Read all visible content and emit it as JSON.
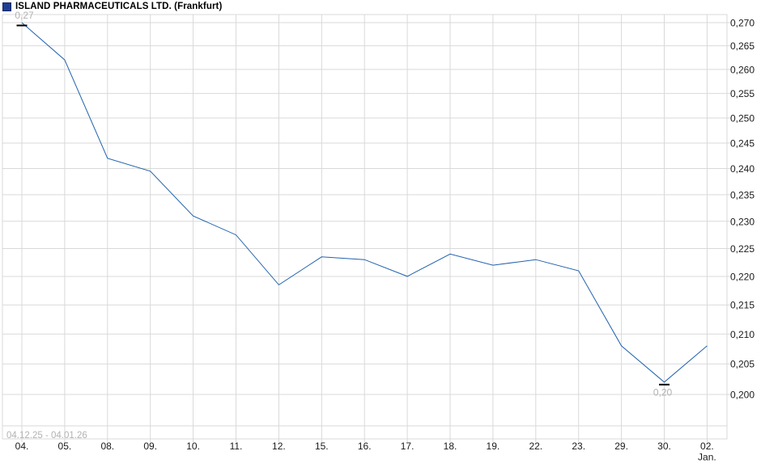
{
  "header": {
    "title": "ISLAND PHARMACEUTICALS LTD. (Frankfurt)"
  },
  "colors": {
    "line": "#2161ae",
    "grid": "#d9d9d9",
    "axis_text": "#1a1a1a",
    "muted_text": "#b2b2b2",
    "marker": "#000000",
    "legend_square": "#1b3f94",
    "background": "#ffffff"
  },
  "chart_data": {
    "type": "line",
    "title": "ISLAND PHARMACEUTICALS LTD. (Frankfurt)",
    "exchange": "Frankfurt",
    "date_range_label": "04.12.25 - 04.01.26",
    "y_scale": "log",
    "grid": true,
    "legend_position": "top-left",
    "x_tick_labels": [
      "04.",
      "05.",
      "08.",
      "09.",
      "10.",
      "11.",
      "12.",
      "15.",
      "16.",
      "17.",
      "18.",
      "19.",
      "22.",
      "23.",
      "29.",
      "30.",
      "02."
    ],
    "x_tick_sublabels": {
      "16": "Jan."
    },
    "categories": [
      "04.12.",
      "05.12.",
      "08.12.",
      "09.12.",
      "10.12.",
      "11.12.",
      "12.12.",
      "15.12.",
      "16.12.",
      "17.12.",
      "18.12.",
      "19.12.",
      "22.12.",
      "23.12.",
      "29.12.",
      "30.12.",
      "02.01."
    ],
    "values": [
      0.27,
      0.262,
      0.242,
      0.2395,
      0.231,
      0.2275,
      0.2185,
      0.2235,
      0.223,
      0.22,
      0.224,
      0.222,
      0.223,
      0.221,
      0.208,
      0.202,
      0.208
    ],
    "y_tick_labels": [
      "0,270",
      "0,265",
      "0,260",
      "0,255",
      "0,250",
      "0,245",
      "0,240",
      "0,235",
      "0,230",
      "0,225",
      "0,220",
      "0,215",
      "0,210",
      "0,205",
      "0,200"
    ],
    "y_tick_values": [
      0.27,
      0.265,
      0.26,
      0.255,
      0.25,
      0.245,
      0.24,
      0.235,
      0.23,
      0.225,
      0.22,
      0.215,
      0.21,
      0.205,
      0.2
    ],
    "extra_gridline_values": [
      0.195
    ],
    "ylim": [
      0.193,
      0.2713
    ],
    "annotations": {
      "high": {
        "point_index": 0,
        "label": "0,27",
        "position": "above"
      },
      "low": {
        "point_index": 15,
        "label": "0,20",
        "position": "below"
      }
    }
  }
}
